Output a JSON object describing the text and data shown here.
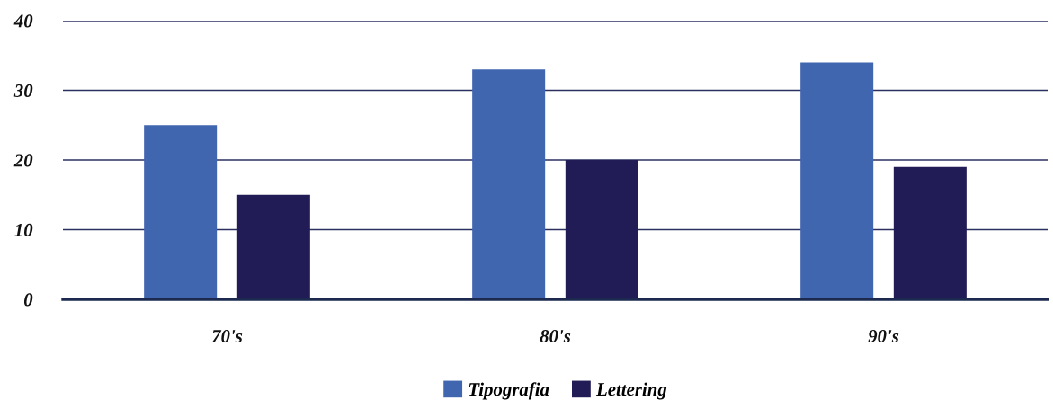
{
  "chart_data": {
    "type": "bar",
    "categories": [
      "70's",
      "80's",
      "90's"
    ],
    "series": [
      {
        "name": "Tipografia",
        "color": "#4066b0",
        "values": [
          25,
          33,
          34
        ]
      },
      {
        "name": "Lettering",
        "color": "#211c55",
        "values": [
          15,
          20,
          19
        ]
      }
    ],
    "ylim": [
      0,
      40
    ],
    "yticks": [
      0,
      10,
      20,
      30,
      40
    ],
    "grid": "y",
    "legend": "bottom"
  }
}
